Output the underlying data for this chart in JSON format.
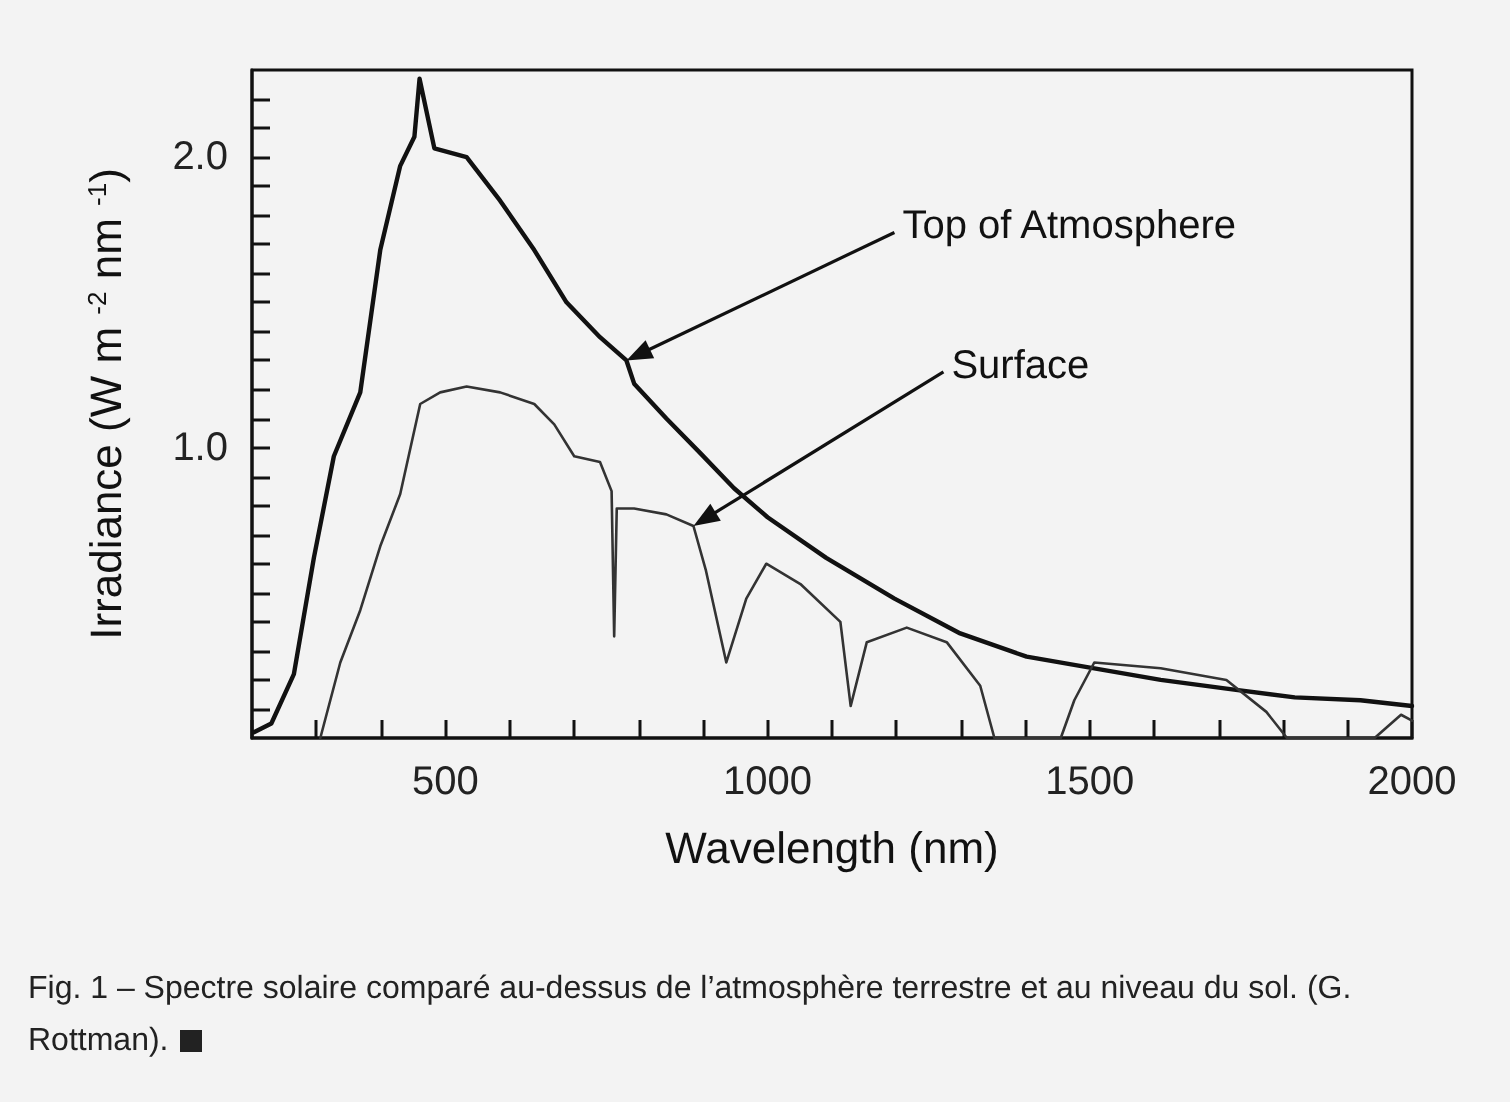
{
  "chart_data": {
    "type": "line",
    "xlabel": "Wavelength (nm)",
    "ylabel": "Irradiance (W m $^{-2}$ nm $^{-1}$)",
    "xlim": [
      200,
      2000
    ],
    "ylim": [
      0,
      2.3
    ],
    "xticks": [
      {
        "value": 200,
        "label": null
      },
      {
        "value": 300,
        "label": null
      },
      {
        "value": 400,
        "label": null
      },
      500,
      {
        "value": 600,
        "label": null
      },
      {
        "value": 700,
        "label": null
      },
      {
        "value": 800,
        "label": null
      },
      {
        "value": 900,
        "label": null
      },
      1000,
      {
        "value": 1100,
        "label": null
      },
      {
        "value": 1200,
        "label": null
      },
      {
        "value": 1300,
        "label": null
      },
      {
        "value": 1400,
        "label": null
      },
      1500,
      {
        "value": 1600,
        "label": null
      },
      {
        "value": 1700,
        "label": null
      },
      {
        "value": 1800,
        "label": null
      },
      {
        "value": 1900,
        "label": null
      },
      2000
    ],
    "yticks": [
      {
        "value": 0.1,
        "label": null
      },
      {
        "value": 0.2,
        "label": null
      },
      {
        "value": 0.3,
        "label": null
      },
      {
        "value": 0.4,
        "label": null
      },
      {
        "value": 0.5,
        "label": null
      },
      {
        "value": 0.6,
        "label": null
      },
      {
        "value": 0.7,
        "label": null
      },
      {
        "value": 0.8,
        "label": null
      },
      {
        "value": 0.9,
        "label": null
      },
      {
        "value": 1.0,
        "label": "1.0"
      },
      {
        "value": 1.1,
        "label": null
      },
      {
        "value": 1.2,
        "label": null
      },
      {
        "value": 1.3,
        "label": null
      },
      {
        "value": 1.4,
        "label": null
      },
      {
        "value": 1.5,
        "label": null
      },
      {
        "value": 1.6,
        "label": null
      },
      {
        "value": 1.7,
        "label": null
      },
      {
        "value": 1.8,
        "label": null
      },
      {
        "value": 1.9,
        "label": null
      },
      {
        "value": 2.0,
        "label": "2.0"
      },
      {
        "value": 2.1,
        "label": null
      },
      {
        "value": 2.2,
        "label": null
      }
    ],
    "grid": false,
    "marker": "none",
    "line_style": "solid",
    "series": [
      {
        "color": "#111111",
        "x": [
          203,
          230,
          265,
          296,
          327,
          368,
          399,
          430,
          452,
          460,
          483,
          533,
          585,
          638,
          688,
          740,
          781,
          793,
          843,
          896,
          948,
          1000,
          1091,
          1197,
          1299,
          1402,
          1507,
          1610,
          1712,
          1818,
          1920,
          2000
        ],
        "values": [
          0.02,
          0.05,
          0.22,
          0.62,
          0.97,
          1.19,
          1.68,
          1.97,
          2.07,
          2.27,
          2.03,
          2.0,
          1.85,
          1.68,
          1.5,
          1.38,
          1.3,
          1.22,
          1.1,
          0.98,
          0.86,
          0.76,
          0.62,
          0.48,
          0.36,
          0.28,
          0.24,
          0.2,
          0.17,
          0.14,
          0.13,
          0.11
        ]
      },
      {
        "color": "#333333",
        "x": [
          306,
          337,
          368,
          399,
          430,
          461,
          492,
          533,
          585,
          638,
          669,
          700,
          740,
          758,
          762,
          766,
          793,
          843,
          885,
          904,
          936,
          967,
          998,
          1051,
          1113,
          1129,
          1154,
          1216,
          1278,
          1330,
          1352,
          1455,
          1476,
          1507,
          1610,
          1712,
          1774,
          1806,
          1942,
          1983,
          2000
        ],
        "values": [
          0,
          0.26,
          0.44,
          0.66,
          0.84,
          1.15,
          1.19,
          1.21,
          1.19,
          1.15,
          1.08,
          0.97,
          0.95,
          0.85,
          0.35,
          0.79,
          0.79,
          0.77,
          0.73,
          0.58,
          0.26,
          0.48,
          0.6,
          0.53,
          0.4,
          0.11,
          0.33,
          0.38,
          0.33,
          0.18,
          0,
          0,
          0.13,
          0.26,
          0.24,
          0.2,
          0.09,
          0,
          0,
          0.08,
          0.06
        ]
      }
    ],
    "annotations": [
      {
        "text": "Top of Atmosphere",
        "x": 781,
        "y": 1.3
      },
      {
        "text": "Surface",
        "x": 885,
        "y": 0.73
      },
      "Fig. 1 – Spectre solaire comparé au-dessus de l’atmosphère terrestre et au niveau du sol. (G. Rottman)."
    ]
  }
}
